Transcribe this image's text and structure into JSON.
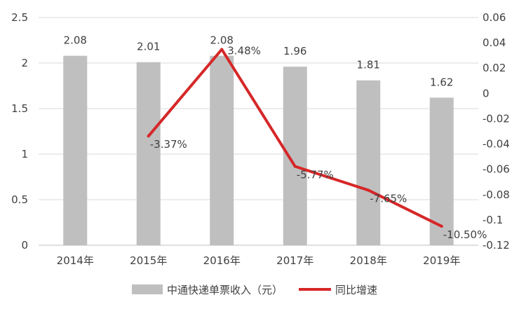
{
  "chart_data": {
    "type": "bar+line",
    "categories": [
      "2014年",
      "2015年",
      "2016年",
      "2017年",
      "2018年",
      "2019年"
    ],
    "series": [
      {
        "name": "中通快递单票收入（元）",
        "type": "bar",
        "axis": "left",
        "color": "#bfbfbf",
        "values": [
          2.08,
          2.01,
          2.08,
          1.96,
          1.81,
          1.62
        ],
        "labels": [
          "2.08",
          "2.01",
          "2.08",
          "1.96",
          "1.81",
          "1.62"
        ]
      },
      {
        "name": "同比增速",
        "type": "line",
        "axis": "right",
        "color": "#d62728",
        "values": [
          null,
          -0.0337,
          0.0348,
          -0.0577,
          -0.0765,
          -0.105
        ],
        "labels": [
          "",
          "-3.37%",
          "3.48%",
          "-5.77%",
          "-7.65%",
          "-10.50%"
        ]
      }
    ],
    "y_left": {
      "range": [
        0,
        2.5
      ],
      "ticks": [
        "0",
        "0.5",
        "1",
        "1.5",
        "2",
        "2.5"
      ]
    },
    "y_right": {
      "range": [
        -0.12,
        0.06
      ],
      "ticks": [
        "-0.12",
        "-0.1",
        "-0.08",
        "-0.06",
        "-0.04",
        "-0.02",
        "0",
        "0.02",
        "0.04",
        "0.06"
      ]
    },
    "grid": true,
    "legend": "bottom-center"
  }
}
